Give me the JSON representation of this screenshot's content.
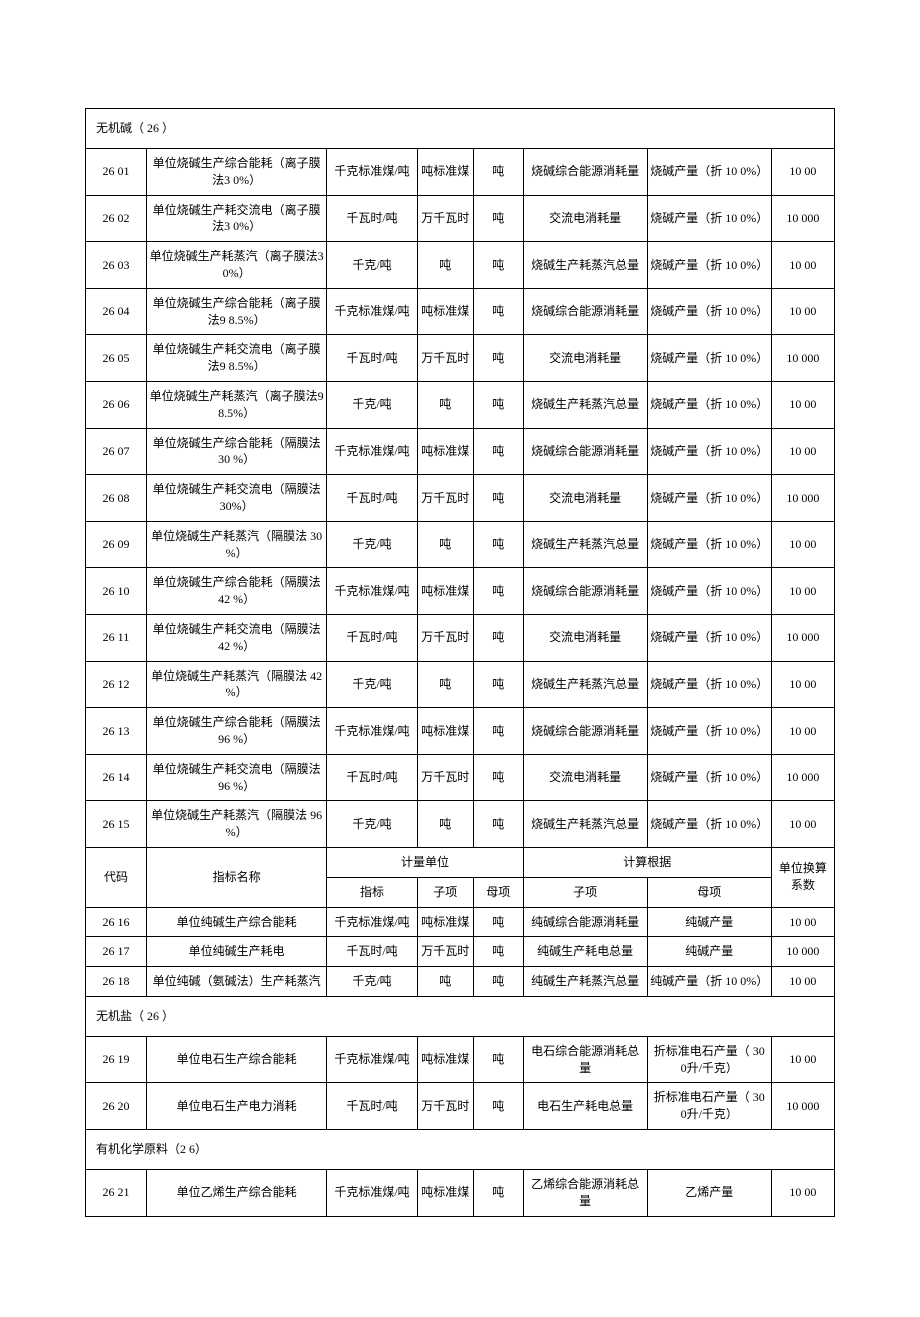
{
  "sections": {
    "s1": {
      "title": "无机碱（ 26 ）"
    },
    "s2": {
      "title": "无机盐（ 26 ）"
    },
    "s3": {
      "title": "有机化学原料（2 6）"
    }
  },
  "header": {
    "code": "代码",
    "name": "指标名称",
    "unit_group": "计量单位",
    "calc_group": "计算根据",
    "coef": "单位换算系数",
    "unit_sub1": "指标",
    "unit_sub2": "子项",
    "unit_sub3": "母项",
    "calc_sub1": "子项",
    "calc_sub2": "母项"
  },
  "rows": {
    "r01": {
      "code": "26 01",
      "name": "单位烧碱生产综合能耗（离子膜法3 0%）",
      "unit1": "千克标准煤/吨",
      "unit2": "吨标准煤",
      "unit3": "吨",
      "calc1": "烧碱综合能源消耗量",
      "calc2": "烧碱产量（折 10 0%）",
      "coef": "10 00"
    },
    "r02": {
      "code": "26 02",
      "name": "单位烧碱生产耗交流电（离子膜法3 0%）",
      "unit1": "千瓦时/吨",
      "unit2": "万千瓦时",
      "unit3": "吨",
      "calc1": "交流电消耗量",
      "calc2": "烧碱产量（折 10 0%）",
      "coef": "10 000"
    },
    "r03": {
      "code": "26 03",
      "name": "单位烧碱生产耗蒸汽（离子膜法3 0%）",
      "unit1": "千克/吨",
      "unit2": "吨",
      "unit3": "吨",
      "calc1": "烧碱生产耗蒸汽总量",
      "calc2": "烧碱产量（折 10 0%）",
      "coef": "10 00"
    },
    "r04": {
      "code": "26 04",
      "name": "单位烧碱生产综合能耗（离子膜法9 8.5%）",
      "unit1": "千克标准煤/吨",
      "unit2": "吨标准煤",
      "unit3": "吨",
      "calc1": "烧碱综合能源消耗量",
      "calc2": "烧碱产量（折 10 0%）",
      "coef": "10 00"
    },
    "r05": {
      "code": "26 05",
      "name": "单位烧碱生产耗交流电（离子膜法9 8.5%）",
      "unit1": "千瓦时/吨",
      "unit2": "万千瓦时",
      "unit3": "吨",
      "calc1": "交流电消耗量",
      "calc2": "烧碱产量（折 10 0%）",
      "coef": "10 000"
    },
    "r06": {
      "code": "26 06",
      "name": "单位烧碱生产耗蒸汽（离子膜法9 8.5%）",
      "unit1": "千克/吨",
      "unit2": "吨",
      "unit3": "吨",
      "calc1": "烧碱生产耗蒸汽总量",
      "calc2": "烧碱产量（折 10 0%）",
      "coef": "10 00"
    },
    "r07": {
      "code": "26 07",
      "name": "单位烧碱生产综合能耗（隔膜法 30 %）",
      "unit1": "千克标准煤/吨",
      "unit2": "吨标准煤",
      "unit3": "吨",
      "calc1": "烧碱综合能源消耗量",
      "calc2": "烧碱产量（折 10 0%）",
      "coef": "10 00"
    },
    "r08": {
      "code": "26 08",
      "name": "单位烧碱生产耗交流电（隔膜法 30%）",
      "unit1": "千瓦时/吨",
      "unit2": "万千瓦时",
      "unit3": "吨",
      "calc1": "交流电消耗量",
      "calc2": "烧碱产量（折 10 0%）",
      "coef": "10 000"
    },
    "r09": {
      "code": "26 09",
      "name": "单位烧碱生产耗蒸汽（隔膜法 30 %）",
      "unit1": "千克/吨",
      "unit2": "吨",
      "unit3": "吨",
      "calc1": "烧碱生产耗蒸汽总量",
      "calc2": "烧碱产量（折 10 0%）",
      "coef": "10 00"
    },
    "r10": {
      "code": "26 10",
      "name": "单位烧碱生产综合能耗（隔膜法 42 %）",
      "unit1": "千克标准煤/吨",
      "unit2": "吨标准煤",
      "unit3": "吨",
      "calc1": "烧碱综合能源消耗量",
      "calc2": "烧碱产量（折 10 0%）",
      "coef": "10 00"
    },
    "r11": {
      "code": "26 11",
      "name": "单位烧碱生产耗交流电（隔膜法 42 %）",
      "unit1": "千瓦时/吨",
      "unit2": "万千瓦时",
      "unit3": "吨",
      "calc1": "交流电消耗量",
      "calc2": "烧碱产量（折 10 0%）",
      "coef": "10 000"
    },
    "r12": {
      "code": "26 12",
      "name": "单位烧碱生产耗蒸汽（隔膜法 42 %）",
      "unit1": "千克/吨",
      "unit2": "吨",
      "unit3": "吨",
      "calc1": "烧碱生产耗蒸汽总量",
      "calc2": "烧碱产量（折 10 0%）",
      "coef": "10 00"
    },
    "r13": {
      "code": "26 13",
      "name": "单位烧碱生产综合能耗（隔膜法 96 %）",
      "unit1": "千克标准煤/吨",
      "unit2": "吨标准煤",
      "unit3": "吨",
      "calc1": "烧碱综合能源消耗量",
      "calc2": "烧碱产量（折 10 0%）",
      "coef": "10 00"
    },
    "r14": {
      "code": "26 14",
      "name": "单位烧碱生产耗交流电（隔膜法 96 %）",
      "unit1": "千瓦时/吨",
      "unit2": "万千瓦时",
      "unit3": "吨",
      "calc1": "交流电消耗量",
      "calc2": "烧碱产量（折 10 0%）",
      "coef": "10 000"
    },
    "r15": {
      "code": "26 15",
      "name": "单位烧碱生产耗蒸汽（隔膜法 96 %）",
      "unit1": "千克/吨",
      "unit2": "吨",
      "unit3": "吨",
      "calc1": "烧碱生产耗蒸汽总量",
      "calc2": "烧碱产量（折 10 0%）",
      "coef": "10 00"
    },
    "r16": {
      "code": "26 16",
      "name": "单位纯碱生产综合能耗",
      "unit1": "千克标准煤/吨",
      "unit2": "吨标准煤",
      "unit3": "吨",
      "calc1": "纯碱综合能源消耗量",
      "calc2": "纯碱产量",
      "coef": "10 00"
    },
    "r17": {
      "code": "26 17",
      "name": "单位纯碱生产耗电",
      "unit1": "千瓦时/吨",
      "unit2": "万千瓦时",
      "unit3": "吨",
      "calc1": "纯碱生产耗电总量",
      "calc2": "纯碱产量",
      "coef": "10 000"
    },
    "r18": {
      "code": "26 18",
      "name": "单位纯碱（氨碱法）生产耗蒸汽",
      "unit1": "千克/吨",
      "unit2": "吨",
      "unit3": "吨",
      "calc1": "纯碱生产耗蒸汽总量",
      "calc2": "纯碱产量（折 10 0%）",
      "coef": "10 00"
    },
    "r19": {
      "code": "26 19",
      "name": "单位电石生产综合能耗",
      "unit1": "千克标准煤/吨",
      "unit2": "吨标准煤",
      "unit3": "吨",
      "calc1": "电石综合能源消耗总量",
      "calc2": "折标准电石产量（ 30 0升/千克）",
      "coef": "10 00"
    },
    "r20": {
      "code": "26 20",
      "name": "单位电石生产电力消耗",
      "unit1": "千瓦时/吨",
      "unit2": "万千瓦时",
      "unit3": "吨",
      "calc1": "电石生产耗电总量",
      "calc2": "折标准电石产量（ 30 0升/千克）",
      "coef": "10 000"
    },
    "r21": {
      "code": "26 21",
      "name": "单位乙烯生产综合能耗",
      "unit1": "千克标准煤/吨",
      "unit2": "吨标准煤",
      "unit3": "吨",
      "calc1": "乙烯综合能源消耗总量",
      "calc2": "乙烯产量",
      "coef": "10 00"
    }
  }
}
